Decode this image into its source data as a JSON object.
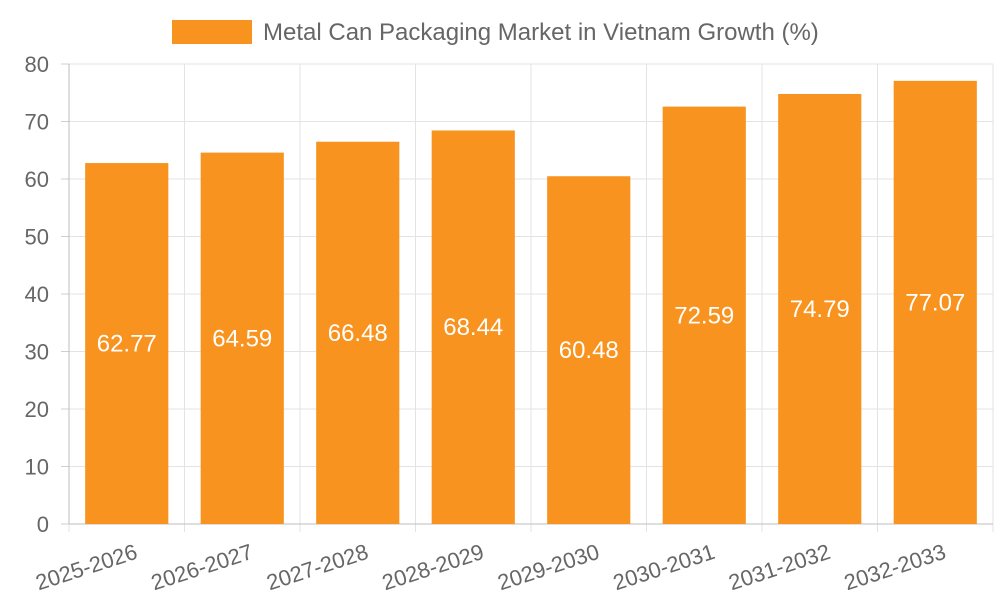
{
  "chart_data": {
    "type": "bar",
    "legend_position": "top",
    "grid": true,
    "ylim": [
      0,
      80
    ],
    "yticks": [
      0,
      10,
      20,
      30,
      40,
      50,
      60,
      70,
      80
    ],
    "categories": [
      "2025-2026",
      "2026-2027",
      "2027-2028",
      "2028-2029",
      "2029-2030",
      "2030-2031",
      "2031-2032",
      "2032-2033"
    ],
    "series": [
      {
        "name": "Metal Can Packaging Market in Vietnam Growth (%)",
        "color": "#f7931e",
        "values": [
          62.77,
          64.59,
          66.48,
          68.44,
          60.48,
          72.59,
          74.79,
          77.07
        ],
        "labels": [
          "62.77",
          "64.59",
          "66.48",
          "68.44",
          "60.48",
          "72.59",
          "74.79",
          "77.07"
        ]
      }
    ]
  }
}
